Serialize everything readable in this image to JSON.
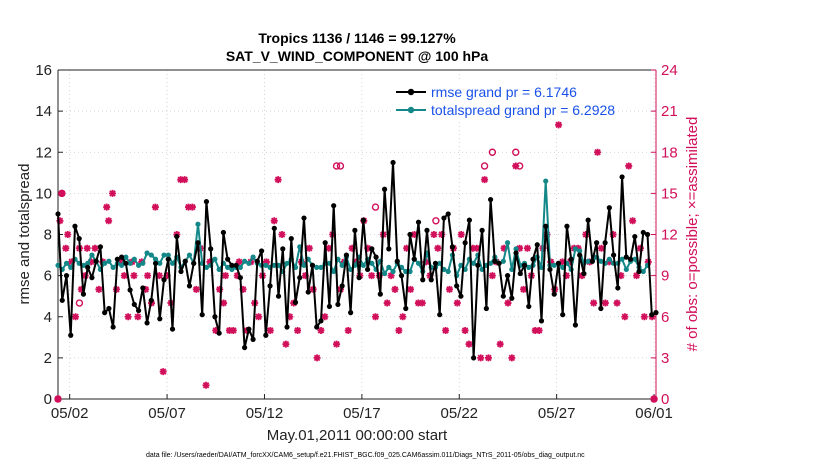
{
  "chart_data": {
    "type": "line",
    "title": "Tropics 1136 / 1146 = 99.127%",
    "subtitle": "SAT_V_WIND_COMPONENT @ 100 hPa",
    "xlabel": "May.01,2011 00:00:00 start",
    "ylabel": "rmse and totalspread",
    "ylabel_right": "# of obs: o=possible; ×=assimilated",
    "footnote": "data file: /Users/raeder/DAI/ATM_forcXX/CAM6_setup/f.e21.FHIST_BGC.f09_025.CAM6assim.011/Diags_NTrS_2011-05/obs_diag_output.nc",
    "xlim": [
      0.4,
      31.1
    ],
    "ylim": [
      0,
      16
    ],
    "ylim_right": [
      0,
      24
    ],
    "xticks": [
      {
        "x": 1,
        "label": "05/02"
      },
      {
        "x": 6,
        "label": "05/07"
      },
      {
        "x": 11,
        "label": "05/12"
      },
      {
        "x": 16,
        "label": "05/17"
      },
      {
        "x": 21,
        "label": "05/22"
      },
      {
        "x": 26,
        "label": "05/27"
      },
      {
        "x": 31,
        "label": "06/01"
      }
    ],
    "yticks": [
      0,
      2,
      4,
      6,
      8,
      10,
      12,
      14,
      16
    ],
    "yticks_right": [
      0,
      3,
      6,
      9,
      12,
      15,
      18,
      21,
      24
    ],
    "grid": true,
    "legend_position": "top-right",
    "colors": {
      "rmse": "#000000",
      "spread": "#148888",
      "obs": "#d10f5a",
      "legend_text": "#1a52e8"
    },
    "series": [
      {
        "name": "rmse grand pr = 6.1746",
        "axis": "left",
        "marker": "circle",
        "values": [
          9.0,
          4.8,
          6.0,
          3.1,
          8.4,
          7.8,
          5.1,
          6.4,
          5.9,
          6.7,
          7.4,
          4.2,
          4.4,
          3.5,
          6.8,
          6.9,
          6.6,
          5.3,
          4.6,
          4.3,
          5.4,
          3.7,
          4.8,
          6.6,
          3.9,
          5.8,
          6.8,
          3.4,
          7.9,
          6.2,
          6.7,
          5.5,
          6.6,
          7.6,
          4.1,
          9.6,
          7.3,
          4.0,
          3.2,
          8.1,
          6.8,
          6.5,
          6.5,
          5.9,
          2.5,
          3.4,
          2.9,
          6.7,
          7.2,
          3.1,
          5.5,
          8.3,
          5.0,
          7.3,
          3.5,
          7.8,
          4.7,
          5.9,
          8.8,
          5.2,
          6.5,
          3.5,
          3.8,
          7.6,
          4.5,
          9.4,
          4.6,
          5.5,
          7.0,
          4.2,
          8.2,
          5.9,
          8.7,
          6.3,
          7.3,
          6.9,
          5.1,
          10.2,
          7.3,
          11.5,
          6.7,
          6.0,
          4.4,
          8.0,
          6.8,
          8.6,
          5.8,
          8.2,
          5.8,
          6.6,
          4.1,
          8.8,
          9.0,
          7.4,
          5.5,
          5.0,
          7.6,
          8.7,
          2.0,
          6.5,
          8.2,
          4.4,
          9.7,
          6.7,
          6.6,
          5.0,
          6.0,
          4.9,
          7.1,
          6.1,
          6.5,
          4.5,
          6.8,
          7.5,
          3.8,
          8.4,
          6.3,
          5.1,
          6.6,
          4.1,
          8.4,
          6.8,
          3.6,
          7.0,
          6.1,
          8.7,
          6.7,
          7.6,
          4.4,
          7.6,
          9.3,
          7.0,
          5.4,
          10.8,
          6.9,
          6.8,
          7.9,
          6.2,
          8.1,
          8.0,
          4.1,
          4.2
        ]
      },
      {
        "name": "totalspread grand pr = 6.2928",
        "axis": "left",
        "marker": "circle",
        "values": [
          6.5,
          6.3,
          6.6,
          6.4,
          6.8,
          6.6,
          6.5,
          6.6,
          7.0,
          6.7,
          6.3,
          6.6,
          6.7,
          6.4,
          6.6,
          6.5,
          6.9,
          6.6,
          6.8,
          6.5,
          6.6,
          7.1,
          7.0,
          6.8,
          6.6,
          7.0,
          7.0,
          6.6,
          6.9,
          6.4,
          6.7,
          7.0,
          6.6,
          8.5,
          6.6,
          6.4,
          6.5,
          6.8,
          6.3,
          6.6,
          6.4,
          6.3,
          6.4,
          6.4,
          6.7,
          6.6,
          6.9,
          6.6,
          6.5,
          6.5,
          6.4,
          6.5,
          6.5,
          6.2,
          6.6,
          6.8,
          6.4,
          7.4,
          6.5,
          6.8,
          6.5,
          6.4,
          6.4,
          6.6,
          6.6,
          6.2,
          6.8,
          6.5,
          6.9,
          6.3,
          6.5,
          6.9,
          6.5,
          6.8,
          6.6,
          6.3,
          6.7,
          6.1,
          6.4,
          6.2,
          6.6,
          6.4,
          6.2,
          6.2,
          6.8,
          6.6,
          6.2,
          7.1,
          6.4,
          6.4,
          6.6,
          6.3,
          6.2,
          7.0,
          6.0,
          6.5,
          6.3,
          6.8,
          6.6,
          7.0,
          6.3,
          6.5,
          6.6,
          6.9,
          6.6,
          6.7,
          7.6,
          6.3,
          7.3,
          6.5,
          6.6,
          6.4,
          6.5,
          6.9,
          6.4,
          10.6,
          6.5,
          6.5,
          6.6,
          6.4,
          6.6,
          6.3,
          7.3,
          7.2,
          6.6,
          6.7,
          6.7,
          6.9,
          6.7,
          6.6,
          6.8,
          6.6,
          6.6,
          6.8,
          6.3,
          6.7,
          6.8,
          6.4,
          6.2,
          6.5
        ]
      },
      {
        "name": "# of obs assimilated",
        "axis": "right",
        "marker": "asterisk",
        "points": [
          [
            0.4,
            0
          ],
          [
            0.5,
            13
          ],
          [
            0.6,
            15
          ],
          [
            0.8,
            11
          ],
          [
            0.9,
            12
          ],
          [
            1.1,
            10
          ],
          [
            1.3,
            6
          ],
          [
            1.5,
            11
          ],
          [
            1.6,
            8
          ],
          [
            1.8,
            9
          ],
          [
            1.9,
            11
          ],
          [
            2.1,
            10
          ],
          [
            2.3,
            11
          ],
          [
            2.5,
            8
          ],
          [
            2.7,
            10
          ],
          [
            2.9,
            14
          ],
          [
            3.0,
            13
          ],
          [
            3.2,
            15
          ],
          [
            3.4,
            8
          ],
          [
            3.6,
            10
          ],
          [
            3.8,
            9
          ],
          [
            4.0,
            6
          ],
          [
            4.2,
            10
          ],
          [
            4.3,
            9
          ],
          [
            4.5,
            6
          ],
          [
            4.7,
            10
          ],
          [
            4.9,
            8
          ],
          [
            5.0,
            9
          ],
          [
            5.2,
            7
          ],
          [
            5.4,
            14
          ],
          [
            5.6,
            9
          ],
          [
            5.8,
            2
          ],
          [
            6.0,
            9
          ],
          [
            6.2,
            7
          ],
          [
            6.5,
            12
          ],
          [
            6.7,
            16
          ],
          [
            6.9,
            16
          ],
          [
            7.1,
            14
          ],
          [
            7.3,
            14
          ],
          [
            7.5,
            8
          ],
          [
            7.7,
            11
          ],
          [
            8.0,
            1
          ],
          [
            8.2,
            10
          ],
          [
            8.5,
            5
          ],
          [
            8.7,
            8
          ],
          [
            8.9,
            7
          ],
          [
            9.0,
            9
          ],
          [
            9.2,
            5
          ],
          [
            9.4,
            5
          ],
          [
            9.6,
            9
          ],
          [
            9.7,
            10
          ],
          [
            9.9,
            8
          ],
          [
            10.1,
            5
          ],
          [
            10.3,
            10
          ],
          [
            10.5,
            7
          ],
          [
            10.7,
            6
          ],
          [
            10.9,
            9
          ],
          [
            11.1,
            10
          ],
          [
            11.3,
            5
          ],
          [
            11.5,
            13
          ],
          [
            11.7,
            16
          ],
          [
            11.9,
            12
          ],
          [
            12.1,
            4
          ],
          [
            12.3,
            6
          ],
          [
            12.5,
            7
          ],
          [
            12.7,
            5
          ],
          [
            12.9,
            10
          ],
          [
            13.1,
            9
          ],
          [
            13.3,
            11
          ],
          [
            13.5,
            8
          ],
          [
            13.7,
            3
          ],
          [
            13.9,
            5
          ],
          [
            14.1,
            6
          ],
          [
            14.3,
            11
          ],
          [
            14.5,
            12
          ],
          [
            14.7,
            4
          ],
          [
            14.9,
            8
          ],
          [
            15.1,
            10
          ],
          [
            15.3,
            5
          ],
          [
            15.5,
            11
          ],
          [
            15.7,
            10
          ],
          [
            15.9,
            9
          ],
          [
            16.1,
            13
          ],
          [
            16.3,
            11
          ],
          [
            16.5,
            9
          ],
          [
            16.7,
            6
          ],
          [
            16.9,
            9
          ],
          [
            17.1,
            12
          ],
          [
            17.3,
            7
          ],
          [
            17.5,
            9
          ],
          [
            17.7,
            8
          ],
          [
            17.9,
            5
          ],
          [
            18.1,
            6
          ],
          [
            18.3,
            11
          ],
          [
            18.5,
            8
          ],
          [
            18.7,
            12
          ],
          [
            18.9,
            7
          ],
          [
            19.1,
            7
          ],
          [
            19.3,
            10
          ],
          [
            19.5,
            9
          ],
          [
            19.7,
            12
          ],
          [
            19.9,
            11
          ],
          [
            20.1,
            12
          ],
          [
            20.3,
            5
          ],
          [
            20.5,
            8
          ],
          [
            20.7,
            11
          ],
          [
            20.9,
            7
          ],
          [
            21.1,
            12
          ],
          [
            21.3,
            5
          ],
          [
            21.5,
            4
          ],
          [
            21.7,
            11
          ],
          [
            21.9,
            11
          ],
          [
            22.1,
            3
          ],
          [
            22.3,
            16
          ],
          [
            22.5,
            3
          ],
          [
            22.7,
            9
          ],
          [
            22.9,
            10
          ],
          [
            23.1,
            4
          ],
          [
            23.3,
            11
          ],
          [
            23.5,
            7
          ],
          [
            23.7,
            3
          ],
          [
            23.9,
            17
          ],
          [
            24.1,
            11
          ],
          [
            24.3,
            8
          ],
          [
            24.5,
            11
          ],
          [
            24.7,
            9
          ],
          [
            24.9,
            5
          ],
          [
            25.1,
            5
          ],
          [
            25.3,
            11
          ],
          [
            25.5,
            12
          ],
          [
            25.7,
            10
          ],
          [
            25.9,
            8
          ],
          [
            26.1,
            20
          ],
          [
            26.3,
            10
          ],
          [
            26.5,
            9
          ],
          [
            26.7,
            10
          ],
          [
            26.9,
            11
          ],
          [
            27.1,
            11
          ],
          [
            27.3,
            9
          ],
          [
            27.5,
            12
          ],
          [
            27.7,
            10
          ],
          [
            27.9,
            7
          ],
          [
            28.1,
            18
          ],
          [
            28.3,
            11
          ],
          [
            28.5,
            7
          ],
          [
            28.7,
            10
          ],
          [
            28.9,
            12
          ],
          [
            29.1,
            7
          ],
          [
            29.3,
            9
          ],
          [
            29.5,
            6
          ],
          [
            29.7,
            17
          ],
          [
            29.9,
            13
          ],
          [
            30.1,
            9
          ],
          [
            30.3,
            11
          ],
          [
            30.5,
            6
          ],
          [
            30.7,
            10
          ],
          [
            30.9,
            6
          ],
          [
            31.0,
            0
          ]
        ]
      },
      {
        "name": "# of obs possible",
        "axis": "right",
        "marker": "open-circle",
        "points": [
          [
            0.4,
            0
          ],
          [
            0.6,
            15
          ],
          [
            1.5,
            7
          ],
          [
            14.7,
            17
          ],
          [
            14.9,
            17
          ],
          [
            16.7,
            14
          ],
          [
            19.8,
            13
          ],
          [
            22.3,
            17
          ],
          [
            22.7,
            18
          ],
          [
            23.9,
            18
          ],
          [
            24.1,
            17
          ],
          [
            31.0,
            0
          ]
        ]
      }
    ]
  }
}
